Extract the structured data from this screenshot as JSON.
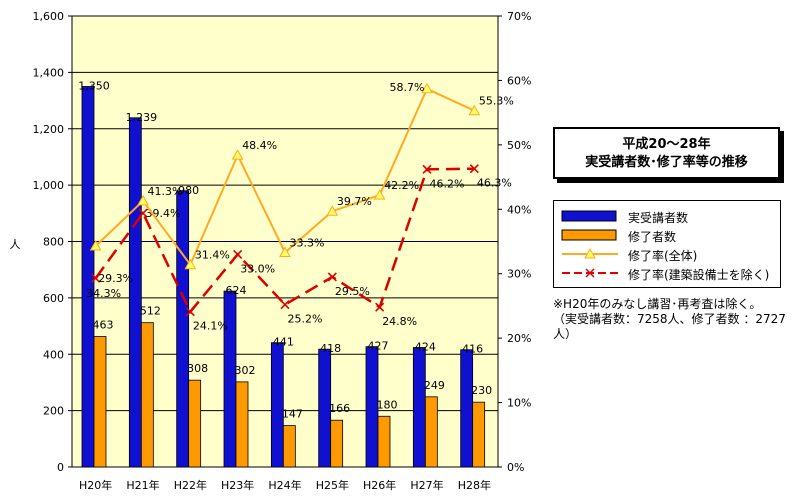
{
  "title": [
    "平成20～28年",
    "実受講者数･修了率等の推移"
  ],
  "note": [
    "※H20年のみなし講習･再考査は除く。",
    "（実受講者数：7258人、修了者数 ：2727",
    "人）"
  ],
  "colors": {
    "plot_bg": "#ffffcc",
    "bar1": "#1010d0",
    "bar2": "#ff9900",
    "line1": "#ffaa22",
    "line2": "#dd0000",
    "grid": "#000000"
  },
  "chart_data": {
    "type": "bar",
    "categories": [
      "H20年",
      "H21年",
      "H22年",
      "H23年",
      "H24年",
      "H25年",
      "H26年",
      "H27年",
      "H28年"
    ],
    "ylabel": "人",
    "ylim": [
      0,
      1600
    ],
    "yticks": [
      0,
      200,
      400,
      600,
      800,
      1000,
      1200,
      1400,
      1600
    ],
    "ytick_labels": [
      "0",
      "200",
      "400",
      "600",
      "800",
      "1,000",
      "1,200",
      "1,400",
      "1,600"
    ],
    "y2lim": [
      0,
      70
    ],
    "y2ticks": [
      0,
      10,
      20,
      30,
      40,
      50,
      60,
      70
    ],
    "y2tick_labels": [
      "0%",
      "10%",
      "20%",
      "30%",
      "40%",
      "50%",
      "60%",
      "70%"
    ],
    "grid": true,
    "series": [
      {
        "name": "実受講者数",
        "type": "bar",
        "axis": "left",
        "values": [
          1350,
          1239,
          980,
          624,
          441,
          418,
          427,
          424,
          416
        ],
        "labels": [
          "1,350",
          "1,239",
          "980",
          "624",
          "441",
          "418",
          "427",
          "424",
          "416"
        ]
      },
      {
        "name": "修了者数",
        "type": "bar",
        "axis": "left",
        "values": [
          463,
          512,
          308,
          302,
          147,
          166,
          180,
          249,
          230
        ],
        "labels": [
          "463",
          "512",
          "308",
          "302",
          "147",
          "166",
          "180",
          "249",
          "230"
        ]
      },
      {
        "name": "修了率(全体)",
        "type": "line",
        "axis": "right",
        "values": [
          34.3,
          41.3,
          31.4,
          48.4,
          33.3,
          39.7,
          42.2,
          58.7,
          55.3
        ],
        "labels": [
          "34.3%",
          "41.3%",
          "31.4%",
          "48.4%",
          "33.3%",
          "39.7%",
          "42.2%",
          "58.7%",
          "55.3%"
        ]
      },
      {
        "name": "修了率(建築設備士を除く)",
        "type": "line",
        "axis": "right",
        "values": [
          29.3,
          39.4,
          24.1,
          33.0,
          25.2,
          29.5,
          24.8,
          46.2,
          46.3
        ],
        "labels": [
          "29.3%",
          "39.4%",
          "24.1%",
          "33.0%",
          "25.2%",
          "29.5%",
          "24.8%",
          "46.2%",
          "46.3%"
        ]
      }
    ]
  }
}
